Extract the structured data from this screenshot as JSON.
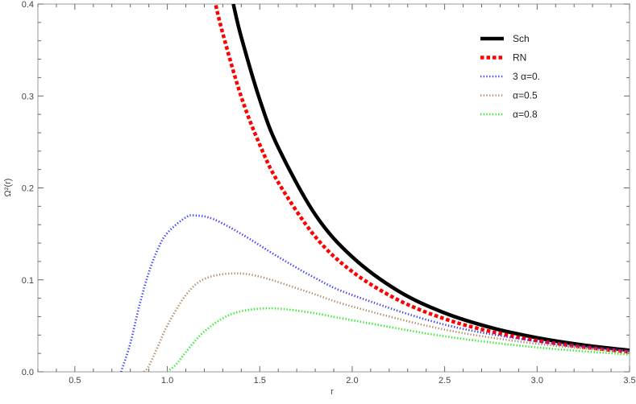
{
  "chart_data": {
    "type": "line",
    "title": "",
    "xlabel": "r",
    "ylabel": "Ω²(r)",
    "xlim": [
      0.3,
      3.5
    ],
    "ylim": [
      0,
      0.4
    ],
    "xticks": [
      "0.5",
      "1.0",
      "1.5",
      "2.0",
      "2.5",
      "3.0",
      "3.5"
    ],
    "yticks": [
      "0.0",
      "0.1",
      "0.2",
      "0.3",
      "0.4"
    ],
    "grid": false,
    "legend_position": "top-right",
    "series": [
      {
        "name": "Sch",
        "color": "#000000",
        "style": "solid",
        "x": [
          1.357,
          1.4,
          1.5,
          1.6,
          1.8,
          2.0,
          2.25,
          2.5,
          2.75,
          3.0,
          3.25,
          3.5
        ],
        "y": [
          0.4,
          0.364,
          0.296,
          0.244,
          0.171,
          0.125,
          0.0878,
          0.064,
          0.0481,
          0.037,
          0.0291,
          0.0233
        ]
      },
      {
        "name": "RN",
        "color": "#ff0000",
        "style": "dashed",
        "x": [
          1.255,
          1.3,
          1.4,
          1.5,
          1.6,
          1.8,
          2.0,
          2.25,
          2.5,
          2.75,
          3.0,
          3.25,
          3.5
        ],
        "y": [
          0.405,
          0.368,
          0.299,
          0.247,
          0.206,
          0.147,
          0.109,
          0.078,
          0.0576,
          0.0437,
          0.0339,
          0.0269,
          0.0216
        ]
      },
      {
        "name": "3 α=0.",
        "color": "#3a3aff",
        "style": "dotted",
        "x": [
          0.75,
          0.8,
          0.85,
          0.9,
          0.95,
          1.0,
          1.1,
          1.154,
          1.25,
          1.4,
          1.6,
          1.8,
          2.0,
          2.5,
          3.0,
          3.5
        ],
        "y": [
          0,
          0.031,
          0.073,
          0.108,
          0.134,
          0.151,
          0.168,
          0.17,
          0.166,
          0.15,
          0.125,
          0.102,
          0.0835,
          0.0513,
          0.0332,
          0.0226
        ]
      },
      {
        "name": "α=0.5",
        "color": "#b08a68",
        "style": "dotted",
        "x": [
          0.874,
          0.9,
          0.95,
          1.0,
          1.1,
          1.2,
          1.35,
          1.5,
          1.75,
          2.0,
          2.5,
          3.0,
          3.5
        ],
        "y": [
          0,
          0.0063,
          0.028,
          0.0503,
          0.0834,
          0.101,
          0.107,
          0.1035,
          0.0876,
          0.071,
          0.0459,
          0.0305,
          0.0211
        ]
      },
      {
        "name": "α=0.8",
        "color": "#22ee22",
        "style": "dotted",
        "x": [
          1.0,
          1.05,
          1.1,
          1.2,
          1.35,
          1.54,
          1.75,
          2.0,
          2.5,
          3.0,
          3.5
        ],
        "y": [
          0,
          0.0086,
          0.0213,
          0.0438,
          0.063,
          0.069,
          0.0652,
          0.0561,
          0.0386,
          0.0265,
          0.0187
        ]
      }
    ]
  }
}
